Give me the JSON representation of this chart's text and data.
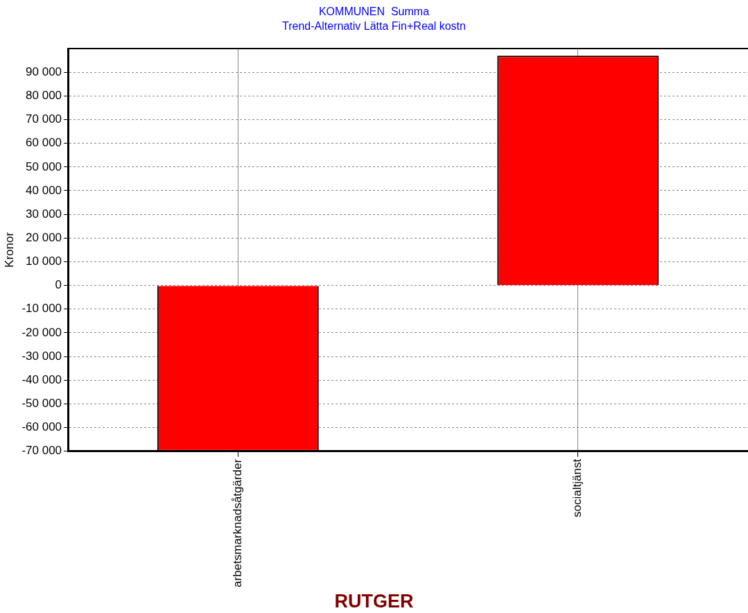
{
  "chart_data": {
    "type": "bar",
    "title": "KOMMUNEN  Summa",
    "subtitle": "Trend-Alternativ Lätta Fin+Real kostn",
    "xlabel": "RUTGER",
    "ylabel": "Kronor",
    "categories": [
      "arbetsmarknadsåtgärder",
      "socialtjänst"
    ],
    "values": [
      -70000,
      97000
    ],
    "color": "#ff0000",
    "ylim": [
      -70000,
      100000
    ],
    "yticks": [
      {
        "value": -70000,
        "label": "-70 000"
      },
      {
        "value": -60000,
        "label": "-60 000"
      },
      {
        "value": -50000,
        "label": "-50 000"
      },
      {
        "value": -40000,
        "label": "-40 000"
      },
      {
        "value": -30000,
        "label": "-30 000"
      },
      {
        "value": -20000,
        "label": "-20 000"
      },
      {
        "value": -10000,
        "label": "-10 000"
      },
      0,
      {
        "value": 10000,
        "label": "10 000"
      },
      {
        "value": 20000,
        "label": "20 000"
      },
      {
        "value": 30000,
        "label": "30 000"
      },
      {
        "value": 40000,
        "label": "40 000"
      },
      {
        "value": 50000,
        "label": "50 000"
      },
      {
        "value": 60000,
        "label": "60 000"
      },
      {
        "value": 70000,
        "label": "70 000"
      },
      {
        "value": 80000,
        "label": "80 000"
      },
      {
        "value": 90000,
        "label": "90 000"
      }
    ],
    "grid": true
  }
}
